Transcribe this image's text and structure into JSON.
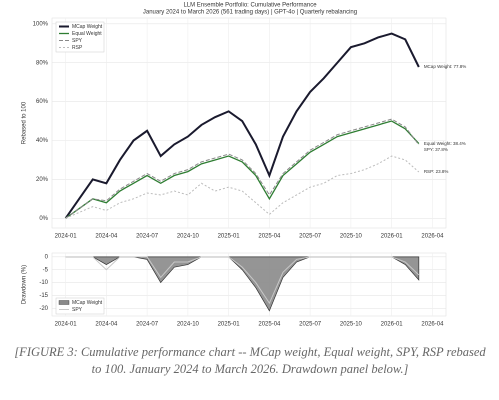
{
  "chart_data": [
    {
      "type": "line",
      "title": "LLM Ensemble Portfolio: Cumulative Performance",
      "subtitle": "January 2024 to March 2026 (561 trading days) | GPT-4o | Quarterly rebalancing",
      "ylabel": "Rebased to 100",
      "x": [
        "2024-01",
        "2024-02",
        "2024-03",
        "2024-04",
        "2024-05",
        "2024-06",
        "2024-07",
        "2024-08",
        "2024-09",
        "2024-10",
        "2024-11",
        "2024-12",
        "2025-01",
        "2025-02",
        "2025-03",
        "2025-04",
        "2025-05",
        "2025-06",
        "2025-07",
        "2025-08",
        "2025-09",
        "2025-10",
        "2025-11",
        "2025-12",
        "2026-01",
        "2026-02",
        "2026-03"
      ],
      "series": [
        {
          "name": "MCap Weight",
          "color": "#1a1a2e",
          "width": 2,
          "label": "MCap Weight: 77.8%",
          "values": [
            0,
            10,
            20,
            18,
            30,
            40,
            45,
            32,
            38,
            42,
            48,
            52,
            55,
            50,
            38,
            22,
            42,
            55,
            65,
            72,
            80,
            88,
            90,
            93,
            95,
            92,
            77.8
          ]
        },
        {
          "name": "Equal Weight",
          "color": "#2e7d32",
          "width": 1.3,
          "label": "Equal Weight: 38.4%",
          "values": [
            0,
            5,
            10,
            8,
            14,
            18,
            22,
            18,
            22,
            24,
            28,
            30,
            32,
            29,
            22,
            10,
            22,
            28,
            34,
            38,
            42,
            44,
            46,
            48,
            50,
            46,
            38.4
          ]
        },
        {
          "name": "SPY",
          "color": "#888888",
          "width": 1,
          "dash": "4 2",
          "label": "SPY: 37.8%",
          "values": [
            0,
            5,
            10,
            9,
            15,
            19,
            23,
            19,
            23,
            25,
            29,
            31,
            33,
            30,
            23,
            12,
            23,
            29,
            35,
            39,
            43,
            45,
            47,
            49,
            51,
            47,
            37.8
          ]
        },
        {
          "name": "RSP",
          "color": "#bbbbbb",
          "width": 1,
          "dash": "2 2",
          "label": "RSP: 23.8%",
          "values": [
            0,
            3,
            6,
            4,
            8,
            10,
            13,
            12,
            14,
            12,
            18,
            14,
            16,
            14,
            8,
            2,
            8,
            12,
            16,
            18,
            22,
            23,
            25,
            28,
            32,
            30,
            23.8
          ]
        }
      ],
      "xlim": [
        "2023-12",
        "2026-05"
      ],
      "xticks": [
        "2024-01",
        "2024-04",
        "2024-07",
        "2024-10",
        "2025-01",
        "2025-04",
        "2025-07",
        "2025-10",
        "2026-01",
        "2026-04"
      ],
      "ylim": [
        -5,
        103
      ],
      "yticks": [
        {
          "value": 0,
          "label": "0%"
        },
        {
          "value": 20,
          "label": "20%"
        },
        {
          "value": 40,
          "label": "40%"
        },
        {
          "value": 60,
          "label": "60%"
        },
        {
          "value": 80,
          "label": "80%"
        },
        {
          "value": 100,
          "label": "100%"
        }
      ],
      "grid": true,
      "legend": "upper left"
    },
    {
      "type": "area",
      "ylabel": "Drawdown (%)",
      "x": [
        "2024-01",
        "2024-02",
        "2024-03",
        "2024-04",
        "2024-05",
        "2024-06",
        "2024-07",
        "2024-08",
        "2024-09",
        "2024-10",
        "2024-11",
        "2024-12",
        "2025-01",
        "2025-02",
        "2025-03",
        "2025-04",
        "2025-05",
        "2025-06",
        "2025-07",
        "2025-08",
        "2025-09",
        "2025-10",
        "2025-11",
        "2025-12",
        "2026-01",
        "2026-02",
        "2026-03"
      ],
      "series": [
        {
          "name": "MCap Weight",
          "color": "#8a8a8a",
          "fill": true,
          "values": [
            0,
            0,
            0,
            -3,
            0,
            0,
            -1,
            -10,
            -4,
            -3,
            0,
            0,
            0,
            -5,
            -12,
            -21,
            -8,
            -2,
            0,
            0,
            0,
            0,
            0,
            0,
            0,
            -3,
            -9
          ]
        },
        {
          "name": "SPY",
          "color": "#c8c8c8",
          "fill": false,
          "values": [
            0,
            0,
            0,
            -5,
            0,
            0,
            0,
            -8,
            -2,
            -2,
            0,
            0,
            0,
            -4,
            -10,
            -18,
            -6,
            -1,
            0,
            0,
            0,
            0,
            0,
            0,
            0,
            -2,
            -7
          ]
        }
      ],
      "xlim": [
        "2023-12",
        "2026-05"
      ],
      "xticks": [
        "2024-01",
        "2024-04",
        "2024-07",
        "2024-10",
        "2025-01",
        "2025-04",
        "2025-07",
        "2025-10",
        "2026-01",
        "2026-04"
      ],
      "ylim": [
        -23,
        1.5
      ],
      "yticks": [
        0,
        -5,
        -10,
        -15,
        -20
      ],
      "grid": true,
      "legend": "lower left"
    }
  ],
  "caption": "[FIGURE 3: Cumulative performance chart -- MCap weight, Equal weight, SPY, RSP rebased to 100. January 2024 to March 2026. Drawdown panel below.]"
}
